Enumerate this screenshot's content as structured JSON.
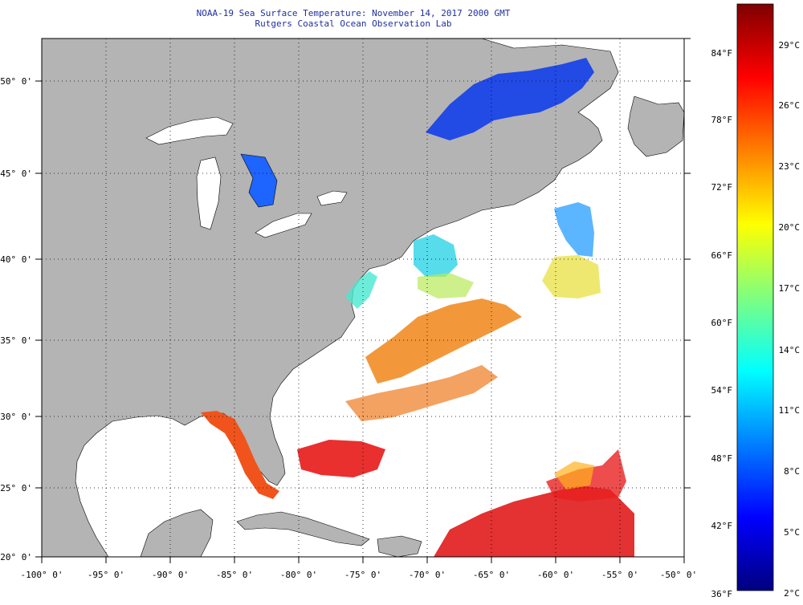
{
  "header": {
    "title": "NOAA-19 Sea Surface Temperature:  November 14, 2017 2000 GMT",
    "subtitle": "Rutgers Coastal Ocean Observation Lab"
  },
  "map": {
    "lon_labels": [
      "-100° 0'",
      "-95° 0'",
      "-90° 0'",
      "-85° 0'",
      "-80° 0'",
      "-75° 0'",
      "-70° 0'",
      "-65° 0'",
      "-60° 0'",
      "-55° 0'",
      "-50° 0'"
    ],
    "lat_labels": [
      "50° 0'",
      "45° 0'",
      "40° 0'",
      "35° 0'",
      "30° 0'",
      "25° 0'",
      "20° 0'"
    ],
    "lon_range": [
      -100,
      -50
    ],
    "lat_range": [
      20,
      52.5
    ],
    "land_color": "#b4b4b4",
    "no_data_color": "#ffffff"
  },
  "colorbar": {
    "fahrenheit_labels": [
      "84°F",
      "78°F",
      "72°F",
      "66°F",
      "60°F",
      "54°F",
      "48°F",
      "42°F",
      "36°F"
    ],
    "celsius_labels": [
      "29°C",
      "26°C",
      "23°C",
      "20°C",
      "17°C",
      "14°C",
      "11°C",
      "8°C",
      "5°C",
      "2°C"
    ],
    "range_c": [
      2,
      31
    ],
    "colors": [
      "#00007f",
      "#0000ff",
      "#007fff",
      "#00ffff",
      "#7fff7f",
      "#ffff00",
      "#ff7f00",
      "#ff0000",
      "#7f0000"
    ]
  }
}
